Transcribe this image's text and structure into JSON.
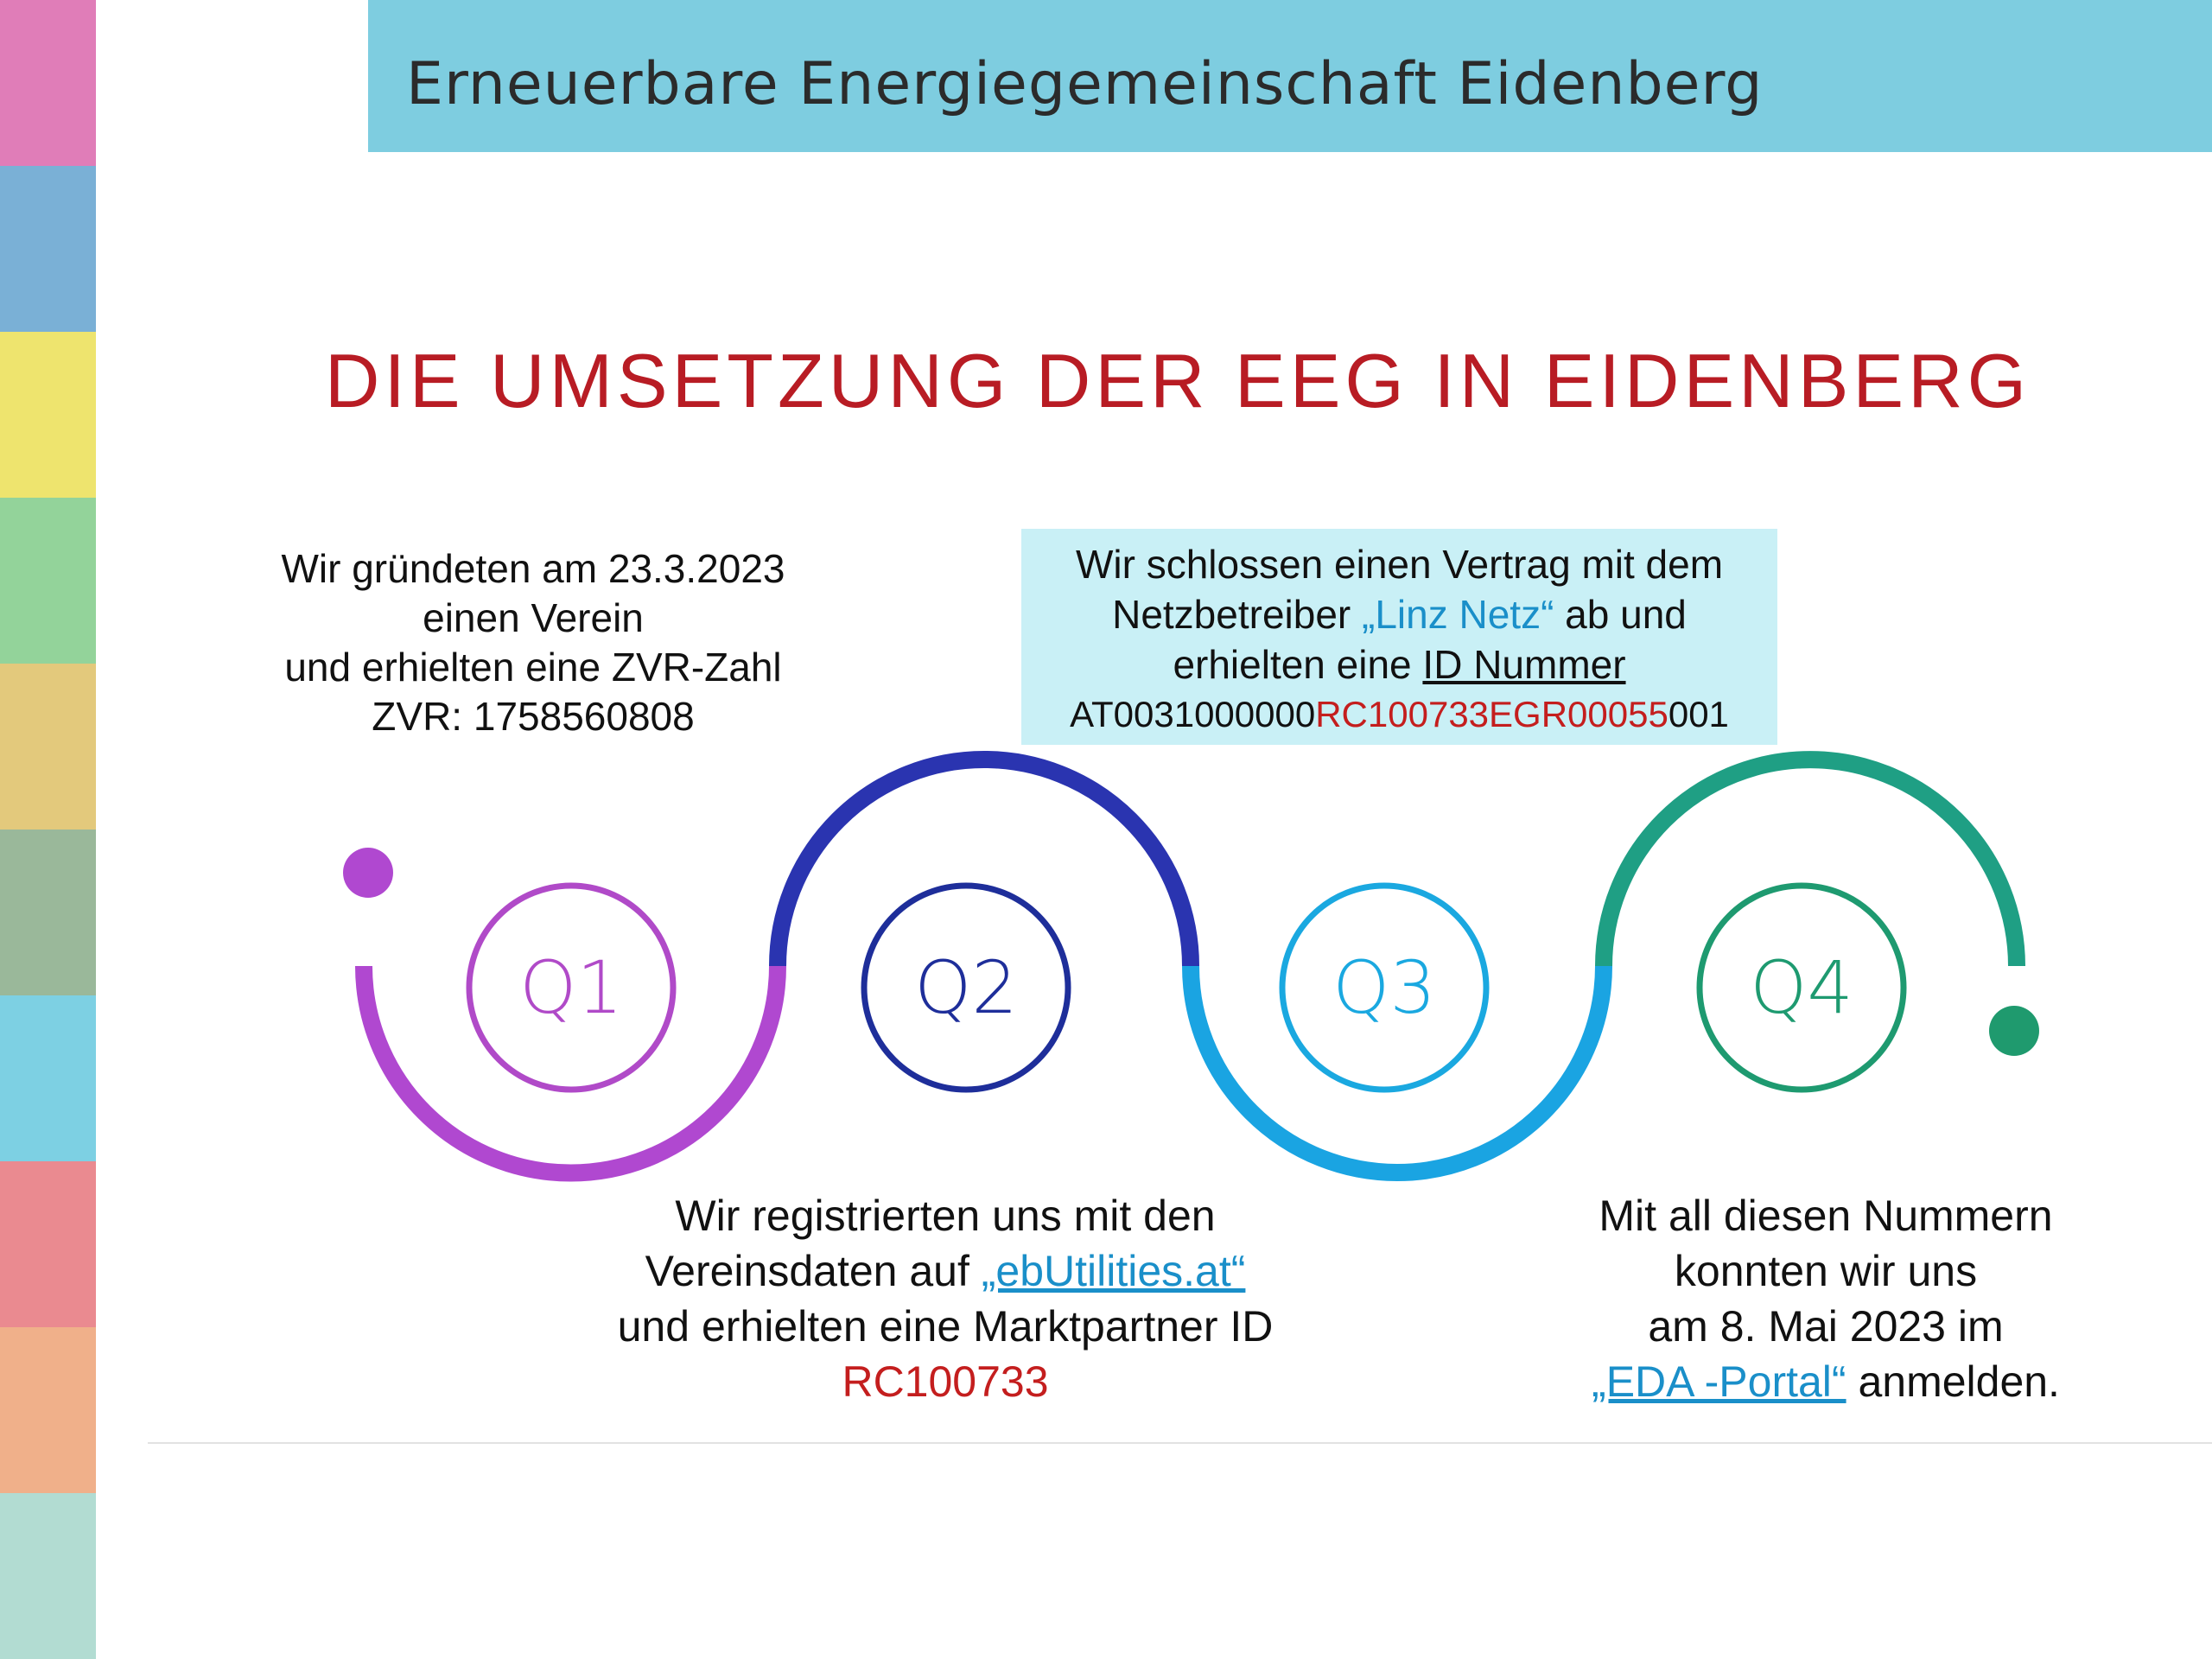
{
  "header": {
    "title": "Erneuerbare Energiegemeinschaft Eidenberg"
  },
  "heading": "DIE UMSETZUNG DER EEG IN EIDENBERG",
  "steps": [
    {
      "label": "Q1",
      "lines": [
        [
          "Wir gründeten am 23.3.2023"
        ],
        [
          "einen Verein"
        ],
        [
          "und erhielten eine ZVR-Zahl"
        ],
        [
          "ZVR: 1758560808"
        ]
      ]
    },
    {
      "label": "Q2",
      "lines": [
        [
          "Wir registrierten uns mit den"
        ],
        [
          "Vereinsdaten auf ",
          "„ebUtilities.at“"
        ],
        [
          "und erhielten eine Marktpartner ID"
        ],
        [
          "RC100733"
        ]
      ]
    },
    {
      "label": "Q3",
      "lines": [
        [
          "Wir schlossen einen Vertrag mit dem"
        ],
        [
          "Netzbetreiber ",
          "„Linz Netz“",
          " ab und"
        ],
        [
          "erhielten eine ",
          "ID Nummer"
        ],
        [
          "AT0031000000",
          "RC100733EGR00055",
          "001"
        ]
      ]
    },
    {
      "label": "Q4",
      "lines": [
        [
          "Mit all diesen Nummern"
        ],
        [
          "konnten wir uns"
        ],
        [
          "am 8. Mai 2023 im"
        ],
        [
          "„EDA -Portal“",
          " anmelden."
        ]
      ]
    }
  ]
}
